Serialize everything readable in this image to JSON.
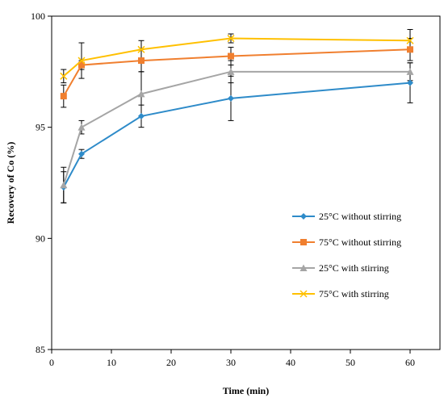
{
  "chart_data": {
    "type": "line",
    "title": "",
    "xlabel": "Time (min)",
    "ylabel": "Recovery of Co (%)",
    "xlim": [
      0,
      65
    ],
    "ylim": [
      85,
      100
    ],
    "xticks": [
      0,
      10,
      20,
      30,
      40,
      50,
      60
    ],
    "yticks": [
      85,
      90,
      95,
      100
    ],
    "x_tick_labels": [
      "0",
      "10",
      "20",
      "30",
      "40",
      "50",
      "60"
    ],
    "y_tick_labels": [
      "85",
      "90",
      "95",
      "100"
    ],
    "grid": false,
    "legend_position": "right",
    "x": [
      2,
      5,
      15,
      30,
      60
    ],
    "series": [
      {
        "name": "25°C without stirring",
        "color": "#2E8BC9",
        "marker": "diamond",
        "values": [
          92.3,
          93.8,
          95.5,
          96.3,
          97.0
        ],
        "errors": [
          0.7,
          0.2,
          0.5,
          1.0,
          0.9
        ]
      },
      {
        "name": "75°C without stirring",
        "color": "#F07F2F",
        "marker": "square",
        "values": [
          96.4,
          97.8,
          98.0,
          98.2,
          98.5
        ],
        "errors": [
          0.5,
          0.2,
          0.5,
          0.4,
          0.5
        ]
      },
      {
        "name": "25°C with stirring",
        "color": "#A5A5A5",
        "marker": "triangle",
        "values": [
          92.4,
          95.0,
          96.5,
          97.5,
          97.5
        ],
        "errors": [
          0.8,
          0.3,
          1.0,
          0.5,
          0.4
        ]
      },
      {
        "name": "75°C with stirring",
        "color": "#FFC000",
        "marker": "x",
        "values": [
          97.3,
          98.0,
          98.5,
          99.0,
          98.9
        ],
        "errors": [
          0.3,
          0.8,
          0.4,
          0.2,
          0.5
        ]
      }
    ]
  }
}
